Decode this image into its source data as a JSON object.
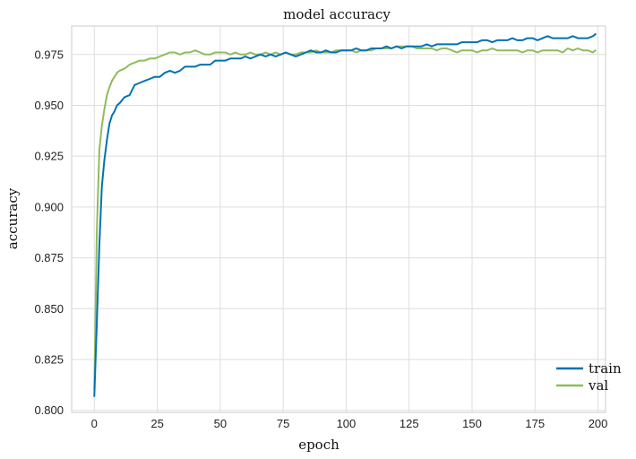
{
  "chart_data": {
    "type": "line",
    "title": "model accuracy",
    "xlabel": "epoch",
    "ylabel": "accuracy",
    "xlim": [
      -9,
      203
    ],
    "ylim": [
      0.799,
      0.989
    ],
    "xticks": [
      0,
      25,
      50,
      75,
      100,
      125,
      150,
      175,
      200
    ],
    "yticks": [
      0.8,
      0.825,
      0.85,
      0.875,
      0.9,
      0.925,
      0.95,
      0.975
    ],
    "ytick_labels": [
      "0.800",
      "0.825",
      "0.850",
      "0.875",
      "0.900",
      "0.925",
      "0.950",
      "0.975"
    ],
    "grid": true,
    "legend": "lower-right",
    "series": [
      {
        "name": "train",
        "color": "#0072b2",
        "x": [
          0,
          1,
          2,
          3,
          4,
          5,
          6,
          7,
          8,
          9,
          10,
          12,
          14,
          16,
          18,
          20,
          22,
          24,
          26,
          28,
          30,
          32,
          34,
          36,
          38,
          40,
          42,
          44,
          46,
          48,
          50,
          52,
          54,
          56,
          58,
          60,
          62,
          64,
          66,
          68,
          70,
          72,
          74,
          76,
          78,
          80,
          82,
          84,
          86,
          88,
          90,
          92,
          94,
          96,
          98,
          100,
          102,
          104,
          106,
          108,
          110,
          112,
          114,
          116,
          118,
          120,
          122,
          124,
          126,
          128,
          130,
          132,
          134,
          136,
          138,
          140,
          142,
          144,
          146,
          148,
          150,
          152,
          154,
          156,
          158,
          160,
          162,
          164,
          166,
          168,
          170,
          172,
          174,
          176,
          178,
          180,
          182,
          184,
          186,
          188,
          190,
          192,
          194,
          196,
          198,
          199
        ],
        "y": [
          0.807,
          0.843,
          0.881,
          0.91,
          0.923,
          0.933,
          0.941,
          0.945,
          0.947,
          0.95,
          0.951,
          0.954,
          0.955,
          0.96,
          0.961,
          0.962,
          0.963,
          0.964,
          0.964,
          0.966,
          0.967,
          0.966,
          0.967,
          0.969,
          0.969,
          0.969,
          0.97,
          0.97,
          0.97,
          0.972,
          0.972,
          0.972,
          0.973,
          0.973,
          0.973,
          0.974,
          0.973,
          0.974,
          0.975,
          0.974,
          0.975,
          0.974,
          0.975,
          0.976,
          0.975,
          0.974,
          0.975,
          0.976,
          0.977,
          0.976,
          0.976,
          0.977,
          0.976,
          0.976,
          0.977,
          0.977,
          0.977,
          0.978,
          0.977,
          0.977,
          0.978,
          0.978,
          0.978,
          0.979,
          0.978,
          0.979,
          0.978,
          0.979,
          0.979,
          0.979,
          0.979,
          0.98,
          0.979,
          0.98,
          0.98,
          0.98,
          0.98,
          0.98,
          0.981,
          0.981,
          0.981,
          0.981,
          0.982,
          0.982,
          0.981,
          0.982,
          0.982,
          0.982,
          0.983,
          0.982,
          0.982,
          0.983,
          0.983,
          0.982,
          0.983,
          0.984,
          0.983,
          0.983,
          0.983,
          0.983,
          0.984,
          0.983,
          0.983,
          0.983,
          0.984,
          0.985
        ]
      },
      {
        "name": "val",
        "color": "#8fbc5c",
        "x": [
          0,
          1,
          2,
          3,
          4,
          5,
          6,
          7,
          8,
          9,
          10,
          12,
          14,
          16,
          18,
          20,
          22,
          24,
          26,
          28,
          30,
          32,
          34,
          36,
          38,
          40,
          42,
          44,
          46,
          48,
          50,
          52,
          54,
          56,
          58,
          60,
          62,
          64,
          66,
          68,
          70,
          72,
          74,
          76,
          78,
          80,
          82,
          84,
          86,
          88,
          90,
          92,
          94,
          96,
          98,
          100,
          102,
          104,
          106,
          108,
          110,
          112,
          114,
          116,
          118,
          120,
          122,
          124,
          126,
          128,
          130,
          132,
          134,
          136,
          138,
          140,
          142,
          144,
          146,
          148,
          150,
          152,
          154,
          156,
          158,
          160,
          162,
          164,
          166,
          168,
          170,
          172,
          174,
          176,
          178,
          180,
          182,
          184,
          186,
          188,
          190,
          192,
          194,
          196,
          198,
          199
        ],
        "y": [
          0.81,
          0.888,
          0.928,
          0.94,
          0.948,
          0.955,
          0.959,
          0.962,
          0.964,
          0.966,
          0.967,
          0.968,
          0.97,
          0.971,
          0.972,
          0.972,
          0.973,
          0.973,
          0.974,
          0.975,
          0.976,
          0.976,
          0.975,
          0.976,
          0.976,
          0.977,
          0.976,
          0.975,
          0.975,
          0.976,
          0.976,
          0.976,
          0.975,
          0.976,
          0.975,
          0.975,
          0.976,
          0.975,
          0.975,
          0.976,
          0.975,
          0.976,
          0.975,
          0.976,
          0.975,
          0.975,
          0.976,
          0.976,
          0.976,
          0.977,
          0.976,
          0.976,
          0.976,
          0.977,
          0.977,
          0.977,
          0.977,
          0.976,
          0.977,
          0.977,
          0.977,
          0.978,
          0.978,
          0.978,
          0.978,
          0.979,
          0.979,
          0.979,
          0.979,
          0.978,
          0.978,
          0.978,
          0.978,
          0.977,
          0.978,
          0.978,
          0.977,
          0.976,
          0.977,
          0.977,
          0.977,
          0.976,
          0.977,
          0.977,
          0.978,
          0.977,
          0.977,
          0.977,
          0.977,
          0.977,
          0.976,
          0.977,
          0.977,
          0.976,
          0.977,
          0.977,
          0.977,
          0.977,
          0.976,
          0.978,
          0.977,
          0.978,
          0.977,
          0.977,
          0.976,
          0.977
        ]
      }
    ]
  }
}
